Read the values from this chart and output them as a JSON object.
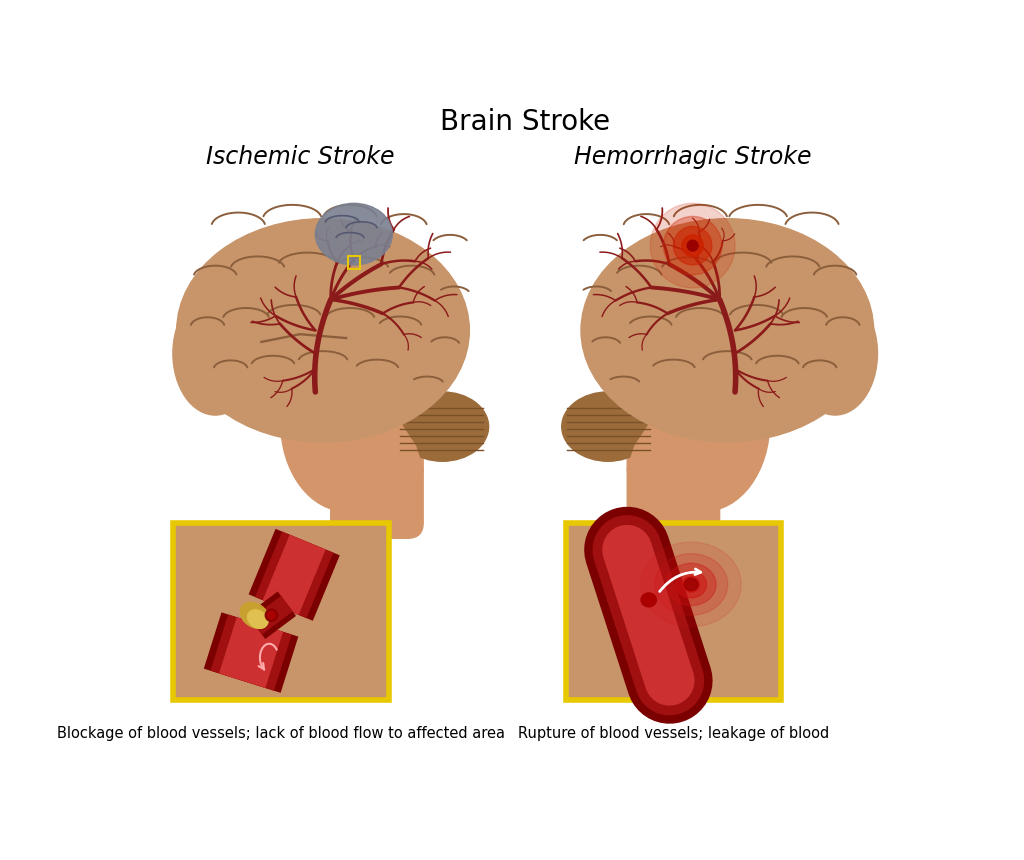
{
  "title": "Brain Stroke",
  "title_fontsize": 20,
  "left_subtitle": "Ischemic Stroke",
  "right_subtitle": "Hemorrhagic Stroke",
  "subtitle_fontsize": 17,
  "left_caption": "Blockage of blood vessels; lack of blood flow to affected area",
  "right_caption": "Rupture of blood vessels; leakage of blood",
  "caption_fontsize": 10.5,
  "bg_color": "#ffffff",
  "brain_color": "#C8956A",
  "brain_dark": "#A0704A",
  "brain_darker": "#8B5E3C",
  "cerebellum_color": "#9B6B3A",
  "cerebellum_stripe": "#7A5028",
  "vessel_color": "#8B1A1A",
  "vessel_mid": "#A52020",
  "gray_area_color": "#7A8090",
  "gray_dark": "#555870",
  "red_spot_color": "#CC2200",
  "skin_color": "#D4956A",
  "neck_color": "#C8855A",
  "yellow_border": "#E8C800",
  "inset_bg": "#C8956A",
  "blood_dark": "#7B0000",
  "blood_mid": "#A01010",
  "blood_light": "#CC3030",
  "plaque_color": "#C8A030",
  "plaque_light": "#E0C050"
}
